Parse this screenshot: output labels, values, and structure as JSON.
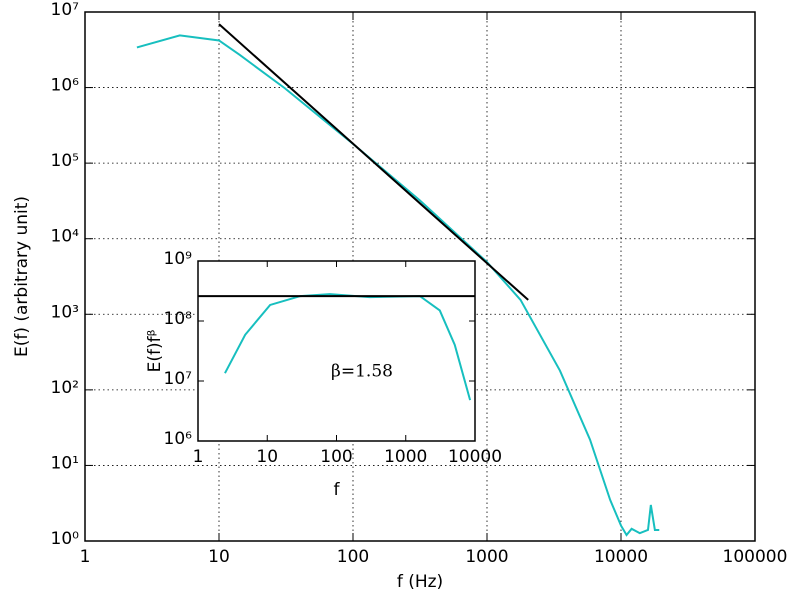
{
  "chart_data": [
    {
      "type": "line",
      "xscale": "log",
      "yscale": "log",
      "grid": true,
      "xlabel": "f (Hz)",
      "ylabel": "E(f) (arbitrary unit)",
      "xlim": [
        1,
        100000
      ],
      "ylim": [
        1,
        10000000
      ],
      "xticks": [
        1,
        10,
        100,
        1000,
        10000,
        100000
      ],
      "yticks": [
        {
          "value": 1,
          "label": "10⁰"
        },
        {
          "value": 10,
          "label": "10¹"
        },
        {
          "value": 100,
          "label": "10²"
        },
        {
          "value": 1000,
          "label": "10³"
        },
        {
          "value": 10000,
          "label": "10⁴"
        },
        {
          "value": 100000,
          "label": "10⁵"
        },
        {
          "value": 1000000,
          "label": "10⁶"
        },
        {
          "value": 10000000,
          "label": "10⁷"
        }
      ],
      "series": [
        {
          "color": "#17bfbf",
          "x": [
            2.44,
            5.1,
            10,
            14.3,
            31,
            100,
            316,
            1000,
            1780,
            3500,
            5870,
            8300,
            10000,
            11000,
            12000,
            13800,
            15900,
            16700,
            17900,
            19300
          ],
          "values": [
            3400000,
            4900000,
            4200000,
            2700000,
            980000,
            180000,
            32000,
            4900,
            1550,
            180,
            22,
            3.5,
            1.6,
            1.2,
            1.45,
            1.27,
            1.4,
            3.0,
            1.4,
            1.4
          ]
        },
        {
          "color": "#000000",
          "x": [
            10,
            2030
          ],
          "values": [
            6900000,
            1550
          ]
        }
      ]
    },
    {
      "type": "line",
      "xscale": "log",
      "yscale": "log",
      "grid": false,
      "xlabel": "f",
      "ylabel": "E(f)fᵝ",
      "annotation": "β=1.58",
      "xlim": [
        1,
        10000
      ],
      "ylim": [
        1000000,
        1000000000
      ],
      "xticks": [
        1,
        10,
        100,
        1000,
        10000
      ],
      "yticks": [
        {
          "value": 1000000,
          "label": "10⁶"
        },
        {
          "value": 10000000,
          "label": "10⁷"
        },
        {
          "value": 100000000,
          "label": "10⁸"
        },
        {
          "value": 1000000000,
          "label": "10⁹"
        }
      ],
      "series": [
        {
          "color": "#17bfbf",
          "x": [
            2.45,
            4.8,
            11,
            30,
            80,
            300,
            1600,
            3100,
            5100,
            8500
          ],
          "values": [
            13500000,
            59000000,
            185000000,
            260000000,
            280000000,
            250000000,
            260000000,
            150000000,
            40000000,
            4800000
          ]
        },
        {
          "color": "#000000",
          "x": [
            1,
            10000
          ],
          "values": [
            260000000,
            260000000
          ]
        }
      ]
    }
  ]
}
